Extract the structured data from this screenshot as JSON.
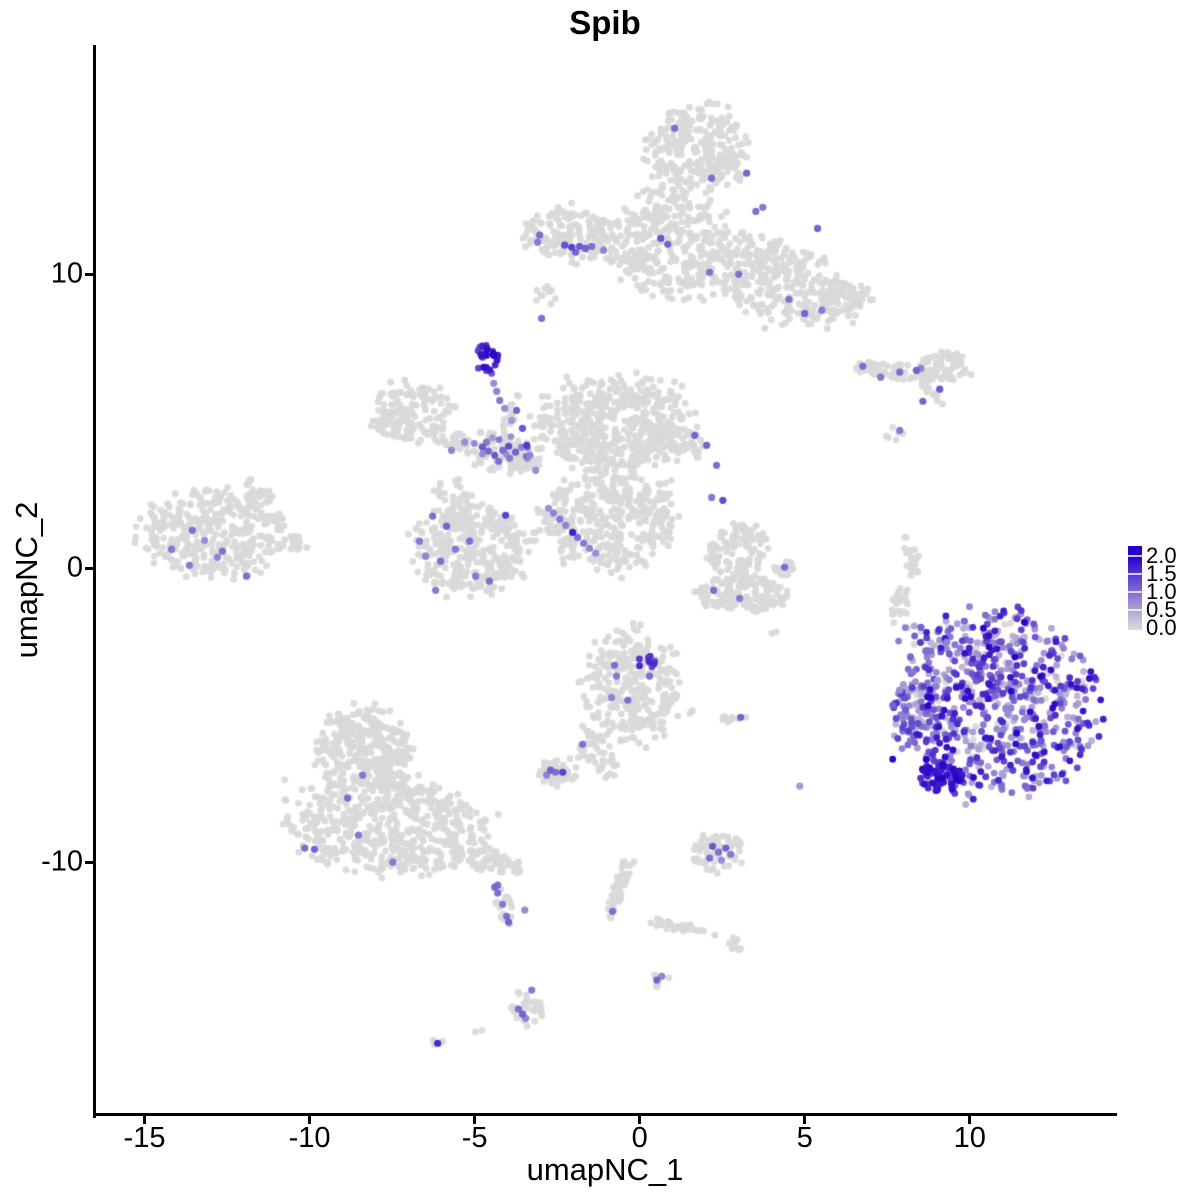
{
  "title": "Spib",
  "axes": {
    "x_label": "umapNC_1",
    "y_label": "umapNC_2",
    "x_tick_labels": [
      "-15",
      "-10",
      "-5",
      "0",
      "5",
      "10"
    ],
    "x_tick_values": [
      -15,
      -10,
      -5,
      0,
      5,
      10
    ],
    "y_tick_labels": [
      "10",
      "0",
      "-10"
    ],
    "y_tick_values": [
      10,
      0,
      -10
    ]
  },
  "legend": {
    "tick_labels": [
      "2.0",
      "1.5",
      "1.0",
      "0.5",
      "0.0"
    ],
    "tick_values": [
      2.0,
      1.5,
      1.0,
      0.5,
      0.0
    ],
    "color_low": "#D9D9D9",
    "color_high": "#2800C8"
  },
  "chart_data": {
    "type": "scatter",
    "title": "Spib",
    "xlabel": "umapNC_1",
    "ylabel": "umapNC_2",
    "xlim": [
      -16.5,
      14.4
    ],
    "ylim": [
      -18.6,
      17.8
    ],
    "x_ticks": [
      -15,
      -10,
      -5,
      0,
      5,
      10
    ],
    "y_ticks": [
      -10,
      0,
      10
    ],
    "grid": false,
    "legend_position": "right",
    "colorbar": {
      "min": 0.0,
      "max": 2.0,
      "ticks": [
        0.0,
        0.5,
        1.0,
        1.5,
        2.0
      ],
      "color_low": "#D9D9D9",
      "color_high": "#2800C8"
    },
    "point_radius_px": 3.4,
    "cluster_format": "[cx, cy, rx, ry, rot_deg, n_points, expr_frac?, expr_lo?, expr_hi?, expr_pow?] — expression t is normalized 0..1 where 1 = 2.0",
    "clusters": [
      [
        1.73,
        14.2,
        1.5,
        1.5,
        0,
        270
      ],
      [
        0.95,
        11.05,
        1.7,
        1.8,
        0,
        310
      ],
      [
        4.2,
        9.8,
        2.45,
        1.35,
        -22,
        340
      ],
      [
        6.2,
        9.2,
        0.8,
        0.6,
        -20,
        60
      ],
      [
        -2.15,
        11.4,
        1.4,
        0.95,
        -5,
        160
      ],
      [
        -0.4,
        10.45,
        0.6,
        0.3,
        -15,
        25
      ],
      [
        -2.88,
        9.25,
        0.36,
        0.44,
        0,
        10
      ],
      [
        -4.64,
        7.14,
        0.34,
        0.44,
        15,
        18,
        1,
        0.78,
        1,
        1
      ],
      [
        -4.62,
        7.1,
        0.5,
        0.6,
        15,
        9,
        1,
        0.5,
        0.78,
        1
      ],
      [
        -3.95,
        5.1,
        0.18,
        1.45,
        -20,
        16
      ],
      [
        -6.9,
        5.3,
        1.2,
        1.05,
        0,
        150
      ],
      [
        -5.8,
        4.45,
        0.6,
        0.32,
        -30,
        24
      ],
      [
        -4.25,
        3.95,
        1.25,
        0.62,
        -15,
        100,
        0.08,
        0.25,
        0.5,
        1
      ],
      [
        -0.75,
        4.9,
        2.3,
        1.55,
        5,
        500
      ],
      [
        1.2,
        4.2,
        0.85,
        0.55,
        -20,
        60
      ],
      [
        -0.9,
        1.65,
        2.0,
        1.7,
        0,
        400
      ],
      [
        -5.6,
        2.15,
        0.6,
        0.95,
        10,
        55
      ],
      [
        -5.1,
        0.55,
        1.7,
        1.45,
        0,
        320
      ],
      [
        -12.9,
        1.2,
        2.1,
        1.45,
        -5,
        350
      ],
      [
        -11.6,
        2.6,
        0.5,
        0.35,
        -30,
        25
      ],
      [
        -10.55,
        0.8,
        0.5,
        0.3,
        0,
        20
      ],
      [
        7.6,
        6.7,
        1.25,
        0.3,
        -6,
        60
      ],
      [
        9.25,
        6.85,
        0.72,
        0.55,
        0,
        60
      ],
      [
        8.85,
        5.95,
        0.5,
        0.15,
        -42,
        12
      ],
      [
        7.76,
        4.6,
        0.28,
        0.28,
        0,
        6
      ],
      [
        8.18,
        0.45,
        0.25,
        0.85,
        8,
        26
      ],
      [
        7.9,
        -1.25,
        0.28,
        0.65,
        -12,
        22
      ],
      [
        10.8,
        -4.65,
        2.9,
        3.0,
        0,
        700,
        0.92,
        0.15,
        0.98,
        1.35
      ],
      [
        8.35,
        -4.85,
        0.75,
        0.95,
        0,
        65,
        0.75,
        0.12,
        0.8,
        1.5
      ],
      [
        9.1,
        -7.05,
        0.75,
        0.55,
        -30,
        60,
        1,
        0.68,
        1,
        1
      ],
      [
        8.7,
        -2.6,
        0.85,
        0.95,
        0,
        18,
        0.5,
        0.2,
        0.6,
        1
      ],
      [
        -0.2,
        -4.0,
        1.4,
        1.9,
        0,
        290
      ],
      [
        0.24,
        -3.2,
        0.28,
        0.22,
        0,
        9,
        1,
        0.55,
        0.85,
        1
      ],
      [
        -1.35,
        -6.35,
        0.45,
        0.95,
        25,
        45
      ],
      [
        -2.5,
        -6.95,
        0.62,
        0.5,
        0,
        48
      ],
      [
        2.8,
        -5.15,
        0.55,
        0.16,
        0,
        10
      ],
      [
        1.55,
        -4.9,
        0.12,
        0.1,
        0,
        3
      ],
      [
        4.06,
        -2.18,
        0.1,
        0.1,
        0,
        2
      ],
      [
        3.0,
        0.6,
        0.9,
        0.9,
        0,
        120
      ],
      [
        3.1,
        -0.85,
        1.35,
        0.6,
        0,
        140
      ],
      [
        4.35,
        0.0,
        0.32,
        0.28,
        0,
        18
      ],
      [
        2.36,
        -9.65,
        0.8,
        0.7,
        0,
        65
      ],
      [
        -0.6,
        -10.8,
        0.22,
        1.15,
        -18,
        40
      ],
      [
        1.2,
        -12.2,
        1.0,
        0.18,
        -12,
        30
      ],
      [
        2.9,
        -12.8,
        0.28,
        0.22,
        0,
        10
      ],
      [
        0.6,
        -14.0,
        0.27,
        0.22,
        0,
        8
      ],
      [
        -8.35,
        -6.2,
        1.4,
        1.4,
        0,
        300
      ],
      [
        -7.7,
        -8.75,
        2.9,
        1.65,
        -8,
        550
      ],
      [
        -4.4,
        -10.0,
        0.95,
        0.38,
        -18,
        60
      ],
      [
        -4.1,
        -11.45,
        0.22,
        0.8,
        5,
        16
      ],
      [
        -3.4,
        -15.0,
        0.5,
        0.6,
        0,
        35
      ],
      [
        -4.9,
        -15.72,
        0.12,
        0.1,
        0,
        2
      ],
      [
        -6.1,
        -16.15,
        0.28,
        0.18,
        20,
        5
      ]
    ],
    "accent_format": "[x, y, t] — individually visible expressing cells, t normalized 0..1 where 1 = 2.0",
    "accent_points": [
      [
        1.06,
        14.97,
        0.5
      ],
      [
        2.18,
        13.27,
        0.5
      ],
      [
        3.24,
        13.44,
        0.55
      ],
      [
        3.52,
        12.14,
        0.5
      ],
      [
        3.73,
        12.28,
        0.45
      ],
      [
        5.39,
        11.56,
        0.55
      ],
      [
        0.64,
        11.22,
        0.6
      ],
      [
        0.85,
        11.02,
        0.55
      ],
      [
        2.12,
        10.07,
        0.5
      ],
      [
        3.0,
        10.0,
        0.5
      ],
      [
        4.52,
        9.15,
        0.5
      ],
      [
        5.0,
        8.67,
        0.55
      ],
      [
        5.52,
        8.78,
        0.45
      ],
      [
        -2.27,
        10.99,
        0.65
      ],
      [
        -2.06,
        10.92,
        0.7
      ],
      [
        -1.82,
        10.95,
        0.6
      ],
      [
        -1.64,
        10.88,
        0.55
      ],
      [
        -1.45,
        10.95,
        0.5
      ],
      [
        -1.94,
        10.75,
        0.55
      ],
      [
        -3.03,
        11.33,
        0.5
      ],
      [
        -3.09,
        11.09,
        0.45
      ],
      [
        -1.09,
        10.82,
        0.4
      ],
      [
        -2.97,
        8.5,
        0.5
      ],
      [
        -4.42,
        6.29,
        0.35
      ],
      [
        -4.33,
        6.02,
        0.4
      ],
      [
        -4.24,
        5.71,
        0.45
      ],
      [
        -4.09,
        5.44,
        0.35
      ],
      [
        -3.88,
        5.03,
        0.3
      ],
      [
        -3.73,
        5.37,
        0.55
      ],
      [
        -3.55,
        4.76,
        0.6
      ],
      [
        -3.42,
        4.18,
        0.75
      ],
      [
        -3.33,
        3.84,
        0.4
      ],
      [
        -3.15,
        3.33,
        0.35
      ],
      [
        -4.76,
        4.12,
        0.6
      ],
      [
        -4.58,
        3.98,
        0.55
      ],
      [
        -4.39,
        3.84,
        0.6
      ],
      [
        -4.15,
        4.01,
        0.5
      ],
      [
        -3.97,
        4.15,
        0.65
      ],
      [
        -3.76,
        3.95,
        0.55
      ],
      [
        -4.27,
        3.64,
        0.5
      ],
      [
        -4.64,
        4.29,
        0.45
      ],
      [
        -3.58,
        4.12,
        0.4
      ],
      [
        -3.94,
        3.74,
        0.45
      ],
      [
        -5.3,
        4.29,
        0.35
      ],
      [
        -5.7,
        4.01,
        0.4
      ],
      [
        1.67,
        4.52,
        0.55
      ],
      [
        2.03,
        4.18,
        0.55
      ],
      [
        2.33,
        3.5,
        0.5
      ],
      [
        2.18,
        2.41,
        0.45
      ],
      [
        2.52,
        2.31,
        0.65
      ],
      [
        -2.76,
        2.04,
        0.35
      ],
      [
        -2.61,
        1.87,
        0.4
      ],
      [
        -2.42,
        1.67,
        0.45
      ],
      [
        -2.24,
        1.46,
        0.4
      ],
      [
        -2.03,
        1.22,
        0.85
      ],
      [
        -1.88,
        1.05,
        0.5
      ],
      [
        -1.7,
        0.85,
        0.45
      ],
      [
        -1.52,
        0.68,
        0.4
      ],
      [
        -1.33,
        0.51,
        0.35
      ],
      [
        -4.06,
        1.8,
        0.7
      ],
      [
        -6.27,
        1.77,
        0.5
      ],
      [
        -5.85,
        1.43,
        0.55
      ],
      [
        -6.67,
        0.92,
        0.45
      ],
      [
        -5.15,
        0.92,
        0.5
      ],
      [
        -5.58,
        0.65,
        0.45
      ],
      [
        -6.48,
        0.41,
        0.4
      ],
      [
        -6.03,
        0.24,
        0.5
      ],
      [
        -4.97,
        -0.27,
        0.45
      ],
      [
        -4.55,
        -0.44,
        0.5
      ],
      [
        -6.18,
        -0.75,
        0.45
      ],
      [
        -13.55,
        1.29,
        0.5
      ],
      [
        -14.18,
        0.65,
        0.45
      ],
      [
        -12.64,
        0.58,
        0.5
      ],
      [
        -12.79,
        0.37,
        0.4
      ],
      [
        -13.64,
        0.1,
        0.45
      ],
      [
        -11.91,
        -0.27,
        0.5
      ],
      [
        -13.18,
        0.95,
        0.35
      ],
      [
        6.76,
        6.87,
        0.5
      ],
      [
        7.3,
        6.5,
        0.45
      ],
      [
        7.88,
        6.67,
        0.5
      ],
      [
        8.39,
        6.73,
        0.55
      ],
      [
        8.52,
        6.8,
        0.4
      ],
      [
        9.09,
        6.09,
        0.6
      ],
      [
        8.58,
        5.68,
        0.55
      ],
      [
        7.88,
        4.69,
        0.45
      ],
      [
        8.52,
        -2.01,
        0.55
      ],
      [
        8.67,
        -2.82,
        0.5
      ],
      [
        8.27,
        -3.54,
        0.45
      ],
      [
        7.88,
        -4.15,
        0.35
      ],
      [
        9.03,
        -3.81,
        0.3
      ],
      [
        7.67,
        -4.66,
        0.55
      ],
      [
        9.3,
        -2.52,
        0.4
      ],
      [
        -0.76,
        -3.3,
        0.5
      ],
      [
        -0.7,
        -3.67,
        0.45
      ],
      [
        -0.36,
        -4.49,
        0.5
      ],
      [
        0.3,
        -3.67,
        0.5
      ],
      [
        -0.85,
        -4.39,
        0.4
      ],
      [
        -1.73,
        -5.99,
        0.5
      ],
      [
        -2.7,
        -6.87,
        0.55
      ],
      [
        -2.55,
        -6.94,
        0.5
      ],
      [
        -2.33,
        -6.94,
        0.7
      ],
      [
        -2.82,
        -7.04,
        0.4
      ],
      [
        3.06,
        -5.07,
        0.55
      ],
      [
        2.21,
        -9.46,
        0.6
      ],
      [
        2.39,
        -9.66,
        0.5
      ],
      [
        2.61,
        -9.52,
        0.55
      ],
      [
        2.76,
        -9.73,
        0.45
      ],
      [
        2.12,
        -9.86,
        0.5
      ],
      [
        2.48,
        -9.93,
        0.35
      ],
      [
        -0.82,
        -11.67,
        0.5
      ],
      [
        0.52,
        -14.01,
        0.55
      ],
      [
        0.67,
        -13.88,
        0.4
      ],
      [
        -4.39,
        -10.85,
        0.55
      ],
      [
        -4.3,
        -11.05,
        0.5
      ],
      [
        -4.15,
        -11.43,
        0.45
      ],
      [
        -3.48,
        -11.63,
        0.35
      ],
      [
        -4.03,
        -11.84,
        0.5
      ],
      [
        -3.97,
        -12.04,
        0.55
      ],
      [
        -3.27,
        -14.35,
        0.45
      ],
      [
        -3.67,
        -15.0,
        0.5
      ],
      [
        -3.55,
        -15.17,
        0.55
      ],
      [
        -3.45,
        -15.31,
        0.4
      ],
      [
        -6.12,
        -16.16,
        0.8
      ],
      [
        4.85,
        -7.41,
        0.3
      ],
      [
        4.39,
        0.03,
        0.5
      ],
      [
        2.24,
        -0.75,
        0.5
      ],
      [
        3.03,
        -1.02,
        0.45
      ],
      [
        -8.39,
        -7.04,
        0.45
      ],
      [
        -8.85,
        -7.82,
        0.5
      ],
      [
        -8.52,
        -9.08,
        0.45
      ],
      [
        -10.15,
        -9.52,
        0.5
      ],
      [
        -9.85,
        -9.56,
        0.55
      ],
      [
        -7.48,
        -10.0,
        0.45
      ],
      [
        -4.3,
        -10.78,
        0.5
      ]
    ]
  }
}
